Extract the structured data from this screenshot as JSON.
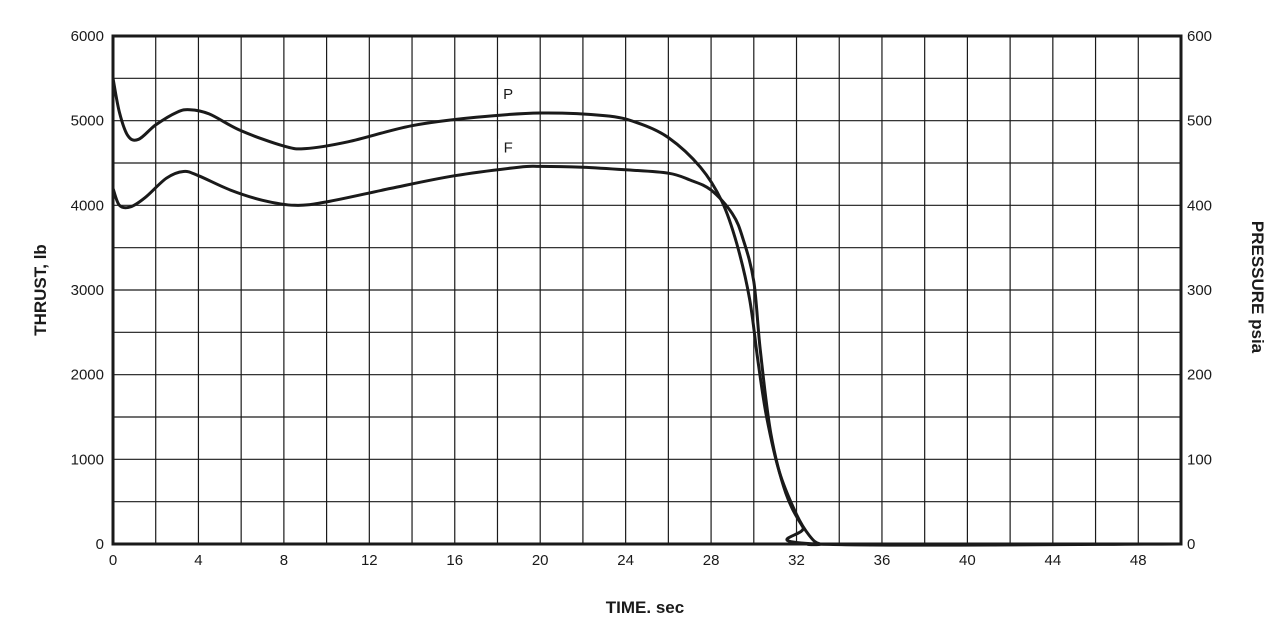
{
  "chart_data": {
    "type": "line",
    "xlabel": "TIME. sec",
    "ylabel": "THRUST, lb",
    "y2label": "PRESSURE psia",
    "xlim": [
      0,
      50
    ],
    "ylim": [
      0,
      6000
    ],
    "y2lim": [
      0,
      600
    ],
    "x_ticks": [
      "0",
      "4",
      "8",
      "12",
      "16",
      "20",
      "24",
      "28",
      "32",
      "36",
      "40",
      "44",
      "48"
    ],
    "y_ticks": [
      "0",
      "1000",
      "2000",
      "3000",
      "4000",
      "5000",
      "6000"
    ],
    "y2_ticks": [
      "0",
      "100",
      "200",
      "300",
      "400",
      "500",
      "600"
    ],
    "grid": true,
    "series": [
      {
        "name": "P",
        "axis": "right",
        "x": [
          0,
          0.3,
          0.7,
          1.2,
          2,
          3,
          3.6,
          4.5,
          6,
          8,
          9,
          11,
          14,
          17,
          20,
          23,
          24.5,
          26,
          27.5,
          28.5,
          29.2,
          29.8,
          30.2,
          30.6,
          31.2,
          32,
          32.6,
          33.1,
          34,
          50
        ],
        "y": [
          550,
          510,
          482,
          478,
          495,
          510,
          513,
          508,
          488,
          470,
          467,
          475,
          494,
          504,
          509,
          506,
          498,
          480,
          445,
          405,
          355,
          290,
          215,
          150,
          85,
          35,
          10,
          0,
          0,
          0
        ]
      },
      {
        "name": "F",
        "axis": "left",
        "x": [
          0,
          0.3,
          0.8,
          1.5,
          2.5,
          3.3,
          4,
          5.5,
          7,
          8.5,
          10,
          13,
          16,
          19,
          20,
          22,
          24,
          26,
          27,
          28,
          29,
          29.5,
          30,
          30.3,
          30.8,
          31.5,
          32.3,
          33,
          50
        ],
        "y": [
          4200,
          4000,
          3980,
          4090,
          4320,
          4400,
          4350,
          4180,
          4060,
          4000,
          4040,
          4200,
          4350,
          4450,
          4460,
          4450,
          4420,
          4380,
          4300,
          4180,
          3900,
          3600,
          3100,
          2300,
          1300,
          600,
          200,
          0,
          0
        ]
      }
    ]
  }
}
